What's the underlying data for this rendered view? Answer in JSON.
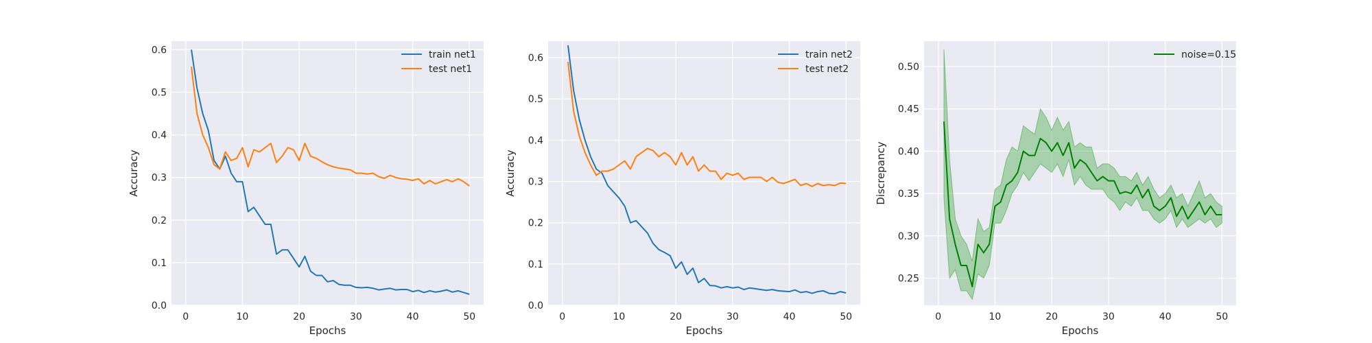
{
  "chart_data": [
    {
      "type": "line",
      "xlabel": "Epochs",
      "ylabel": "Accuracy",
      "xlim": [
        -2.5,
        52.5
      ],
      "ylim": [
        0.0,
        0.62
      ],
      "xticks": [
        0,
        10,
        20,
        30,
        40,
        50
      ],
      "yticks": [
        0.0,
        0.1,
        0.2,
        0.3,
        0.4,
        0.5,
        0.6
      ],
      "ytick_decimals": 1,
      "grid": true,
      "legend": "top-right",
      "x": [
        1,
        2,
        3,
        4,
        5,
        6,
        7,
        8,
        9,
        10,
        11,
        12,
        13,
        14,
        15,
        16,
        17,
        18,
        19,
        20,
        21,
        22,
        23,
        24,
        25,
        26,
        27,
        28,
        29,
        30,
        31,
        32,
        33,
        34,
        35,
        36,
        37,
        38,
        39,
        40,
        41,
        42,
        43,
        44,
        45,
        46,
        47,
        48,
        49,
        50
      ],
      "series": [
        {
          "name": "train net1",
          "color": "#1f77b4",
          "values": [
            0.6,
            0.51,
            0.45,
            0.41,
            0.34,
            0.32,
            0.35,
            0.31,
            0.29,
            0.29,
            0.22,
            0.23,
            0.21,
            0.19,
            0.19,
            0.12,
            0.13,
            0.13,
            0.11,
            0.09,
            0.115,
            0.08,
            0.07,
            0.07,
            0.055,
            0.058,
            0.049,
            0.047,
            0.047,
            0.042,
            0.041,
            0.042,
            0.04,
            0.036,
            0.038,
            0.04,
            0.036,
            0.037,
            0.037,
            0.032,
            0.035,
            0.03,
            0.034,
            0.031,
            0.033,
            0.036,
            0.031,
            0.034,
            0.03,
            0.026
          ]
        },
        {
          "name": "test net1",
          "color": "#ff7f0e",
          "values": [
            0.56,
            0.45,
            0.4,
            0.37,
            0.33,
            0.32,
            0.36,
            0.34,
            0.345,
            0.37,
            0.325,
            0.365,
            0.36,
            0.37,
            0.38,
            0.335,
            0.35,
            0.37,
            0.365,
            0.34,
            0.38,
            0.35,
            0.345,
            0.337,
            0.33,
            0.325,
            0.322,
            0.32,
            0.318,
            0.31,
            0.31,
            0.308,
            0.31,
            0.302,
            0.298,
            0.305,
            0.3,
            0.297,
            0.296,
            0.293,
            0.297,
            0.285,
            0.293,
            0.285,
            0.29,
            0.295,
            0.29,
            0.297,
            0.29,
            0.28
          ]
        }
      ]
    },
    {
      "type": "line",
      "xlabel": "Epochs",
      "ylabel": "Accuracy",
      "xlim": [
        -2.5,
        52.5
      ],
      "ylim": [
        0.0,
        0.64
      ],
      "xticks": [
        0,
        10,
        20,
        30,
        40,
        50
      ],
      "yticks": [
        0.0,
        0.1,
        0.2,
        0.3,
        0.4,
        0.5,
        0.6
      ],
      "ytick_decimals": 1,
      "grid": true,
      "legend": "top-right",
      "x": [
        1,
        2,
        3,
        4,
        5,
        6,
        7,
        8,
        9,
        10,
        11,
        12,
        13,
        14,
        15,
        16,
        17,
        18,
        19,
        20,
        21,
        22,
        23,
        24,
        25,
        26,
        27,
        28,
        29,
        30,
        31,
        32,
        33,
        34,
        35,
        36,
        37,
        38,
        39,
        40,
        41,
        42,
        43,
        44,
        45,
        46,
        47,
        48,
        49,
        50
      ],
      "series": [
        {
          "name": "train net2",
          "color": "#1f77b4",
          "values": [
            0.63,
            0.52,
            0.45,
            0.4,
            0.36,
            0.33,
            0.32,
            0.29,
            0.275,
            0.26,
            0.24,
            0.2,
            0.205,
            0.19,
            0.175,
            0.15,
            0.135,
            0.128,
            0.12,
            0.09,
            0.105,
            0.075,
            0.09,
            0.055,
            0.065,
            0.048,
            0.047,
            0.042,
            0.045,
            0.042,
            0.044,
            0.038,
            0.042,
            0.04,
            0.038,
            0.036,
            0.038,
            0.035,
            0.034,
            0.033,
            0.037,
            0.031,
            0.033,
            0.029,
            0.033,
            0.035,
            0.029,
            0.028,
            0.033,
            0.03
          ]
        },
        {
          "name": "test net2",
          "color": "#ff7f0e",
          "values": [
            0.59,
            0.47,
            0.41,
            0.37,
            0.34,
            0.315,
            0.325,
            0.325,
            0.33,
            0.34,
            0.35,
            0.33,
            0.36,
            0.37,
            0.38,
            0.375,
            0.36,
            0.37,
            0.36,
            0.34,
            0.37,
            0.34,
            0.36,
            0.325,
            0.34,
            0.325,
            0.325,
            0.305,
            0.32,
            0.315,
            0.32,
            0.305,
            0.31,
            0.31,
            0.31,
            0.3,
            0.31,
            0.298,
            0.295,
            0.3,
            0.305,
            0.29,
            0.295,
            0.288,
            0.295,
            0.29,
            0.292,
            0.29,
            0.296,
            0.295
          ]
        }
      ]
    },
    {
      "type": "line",
      "xlabel": "Epochs",
      "ylabel": "Discrepancy",
      "xlim": [
        -2.5,
        52.5
      ],
      "ylim": [
        0.218,
        0.53
      ],
      "xticks": [
        0,
        10,
        20,
        30,
        40,
        50
      ],
      "yticks": [
        0.25,
        0.3,
        0.35,
        0.4,
        0.45,
        0.5
      ],
      "ytick_decimals": 2,
      "grid": true,
      "legend": "top-right",
      "x": [
        1,
        2,
        3,
        4,
        5,
        6,
        7,
        8,
        9,
        10,
        11,
        12,
        13,
        14,
        15,
        16,
        17,
        18,
        19,
        20,
        21,
        22,
        23,
        24,
        25,
        26,
        27,
        28,
        29,
        30,
        31,
        32,
        33,
        34,
        35,
        36,
        37,
        38,
        39,
        40,
        41,
        42,
        43,
        44,
        45,
        46,
        47,
        48,
        49,
        50
      ],
      "series": [
        {
          "name": "noise=0.15",
          "color": "#008000",
          "band_color": "#2ca02c",
          "values": [
            0.435,
            0.32,
            0.29,
            0.265,
            0.265,
            0.24,
            0.29,
            0.28,
            0.29,
            0.335,
            0.34,
            0.36,
            0.365,
            0.375,
            0.4,
            0.395,
            0.395,
            0.415,
            0.41,
            0.4,
            0.41,
            0.395,
            0.41,
            0.38,
            0.39,
            0.385,
            0.375,
            0.365,
            0.37,
            0.365,
            0.365,
            0.35,
            0.352,
            0.35,
            0.36,
            0.345,
            0.355,
            0.335,
            0.33,
            0.335,
            0.345,
            0.323,
            0.335,
            0.32,
            0.33,
            0.34,
            0.325,
            0.335,
            0.325,
            0.325
          ],
          "lower": [
            0.345,
            0.25,
            0.26,
            0.235,
            0.235,
            0.225,
            0.255,
            0.25,
            0.265,
            0.315,
            0.315,
            0.33,
            0.35,
            0.36,
            0.375,
            0.365,
            0.375,
            0.385,
            0.38,
            0.375,
            0.385,
            0.37,
            0.39,
            0.36,
            0.37,
            0.36,
            0.355,
            0.355,
            0.355,
            0.345,
            0.34,
            0.33,
            0.34,
            0.335,
            0.345,
            0.33,
            0.33,
            0.32,
            0.315,
            0.32,
            0.33,
            0.31,
            0.32,
            0.31,
            0.315,
            0.32,
            0.315,
            0.32,
            0.31,
            0.315
          ],
          "upper": [
            0.52,
            0.39,
            0.32,
            0.3,
            0.29,
            0.27,
            0.32,
            0.305,
            0.31,
            0.355,
            0.36,
            0.39,
            0.405,
            0.4,
            0.43,
            0.425,
            0.42,
            0.45,
            0.44,
            0.425,
            0.44,
            0.425,
            0.435,
            0.405,
            0.41,
            0.405,
            0.405,
            0.38,
            0.385,
            0.385,
            0.38,
            0.37,
            0.37,
            0.365,
            0.375,
            0.36,
            0.37,
            0.355,
            0.345,
            0.35,
            0.36,
            0.345,
            0.35,
            0.335,
            0.35,
            0.365,
            0.345,
            0.35,
            0.34,
            0.335
          ]
        }
      ]
    }
  ]
}
